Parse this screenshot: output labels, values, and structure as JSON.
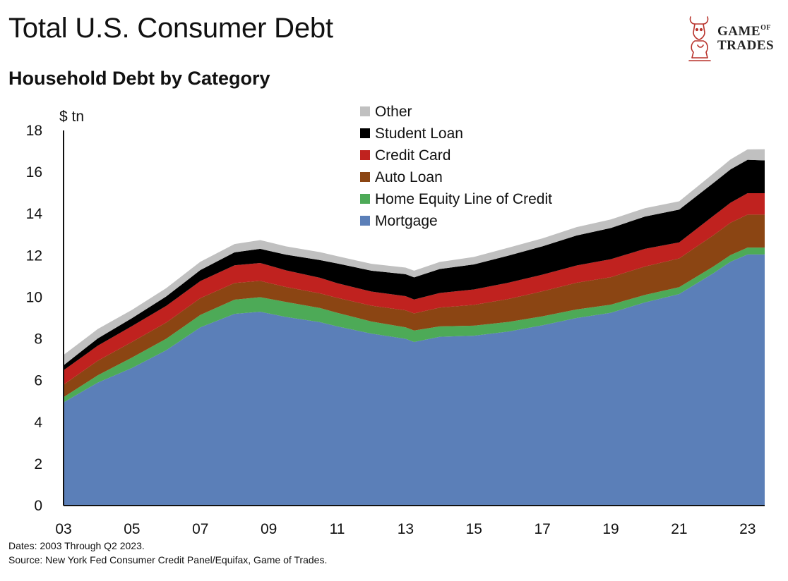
{
  "header": {
    "title": "Total U.S. Consumer Debt",
    "subtitle": "Household Debt by Category"
  },
  "logo": {
    "line1_main": "GAME",
    "line1_small": "OF",
    "line2": "TRADES",
    "icon": "bull-and-knight-logo-icon"
  },
  "footnotes": {
    "dates": "Dates: 2003 Through Q2 2023.",
    "source": "Source: New York Fed Consumer Credit Panel/Equifax, Game of Trades."
  },
  "chart_data": {
    "type": "area",
    "stacked": true,
    "ylabel": "$ tn",
    "ylim": [
      0,
      18
    ],
    "yticks": [
      0,
      2,
      4,
      6,
      8,
      10,
      12,
      14,
      16,
      18
    ],
    "xlim": [
      2003,
      2023.5
    ],
    "xticks": [
      {
        "value": 2003,
        "label": "03"
      },
      {
        "value": 2005,
        "label": "05"
      },
      {
        "value": 2007,
        "label": "07"
      },
      {
        "value": 2009,
        "label": "09"
      },
      {
        "value": 2011,
        "label": "11"
      },
      {
        "value": 2013,
        "label": "13"
      },
      {
        "value": 2015,
        "label": "15"
      },
      {
        "value": 2017,
        "label": "17"
      },
      {
        "value": 2019,
        "label": "19"
      },
      {
        "value": 2021,
        "label": "21"
      },
      {
        "value": 2023,
        "label": "23"
      }
    ],
    "legend_position": "top-center",
    "x": [
      2003.0,
      2004.0,
      2005.0,
      2006.0,
      2007.0,
      2008.0,
      2008.75,
      2009.5,
      2010.5,
      2011.0,
      2012.0,
      2013.0,
      2013.25,
      2014.0,
      2015.0,
      2016.0,
      2017.0,
      2018.0,
      2019.0,
      2020.0,
      2021.0,
      2022.0,
      2022.5,
      2023.0,
      2023.5
    ],
    "series": [
      {
        "name": "Mortgage",
        "color": "#5b7fb8",
        "values": [
          4.95,
          5.9,
          6.6,
          7.45,
          8.55,
          9.2,
          9.3,
          9.05,
          8.8,
          8.6,
          8.25,
          8.0,
          7.85,
          8.1,
          8.15,
          8.35,
          8.65,
          9.0,
          9.25,
          9.75,
          10.15,
          11.15,
          11.7,
          12.05,
          12.05
        ]
      },
      {
        "name": "Home Equity Line of Credit",
        "color": "#4daa57",
        "values": [
          0.25,
          0.35,
          0.5,
          0.55,
          0.6,
          0.68,
          0.7,
          0.72,
          0.68,
          0.65,
          0.58,
          0.55,
          0.55,
          0.5,
          0.48,
          0.46,
          0.43,
          0.41,
          0.39,
          0.36,
          0.33,
          0.32,
          0.32,
          0.33,
          0.33
        ]
      },
      {
        "name": "Auto Loan",
        "color": "#8b4513",
        "values": [
          0.6,
          0.7,
          0.75,
          0.78,
          0.8,
          0.8,
          0.78,
          0.72,
          0.7,
          0.72,
          0.76,
          0.82,
          0.82,
          0.9,
          1.0,
          1.1,
          1.2,
          1.28,
          1.32,
          1.36,
          1.38,
          1.5,
          1.55,
          1.58,
          1.58
        ]
      },
      {
        "name": "Credit Card",
        "color": "#c0221f",
        "values": [
          0.69,
          0.72,
          0.76,
          0.8,
          0.82,
          0.85,
          0.86,
          0.8,
          0.75,
          0.7,
          0.68,
          0.68,
          0.67,
          0.7,
          0.74,
          0.78,
          0.8,
          0.83,
          0.86,
          0.85,
          0.77,
          0.93,
          0.96,
          1.03,
          1.03
        ]
      },
      {
        "name": "Student Loan",
        "color": "#000000",
        "values": [
          0.24,
          0.35,
          0.38,
          0.45,
          0.53,
          0.62,
          0.68,
          0.75,
          0.85,
          0.95,
          1.0,
          1.05,
          1.06,
          1.15,
          1.2,
          1.3,
          1.36,
          1.44,
          1.5,
          1.55,
          1.57,
          1.58,
          1.6,
          1.6,
          1.57
        ]
      },
      {
        "name": "Other",
        "color": "#c0c0c0",
        "values": [
          0.5,
          0.45,
          0.4,
          0.4,
          0.4,
          0.4,
          0.42,
          0.4,
          0.38,
          0.35,
          0.33,
          0.32,
          0.32,
          0.34,
          0.36,
          0.38,
          0.38,
          0.4,
          0.41,
          0.4,
          0.4,
          0.45,
          0.48,
          0.5,
          0.54
        ]
      }
    ]
  }
}
